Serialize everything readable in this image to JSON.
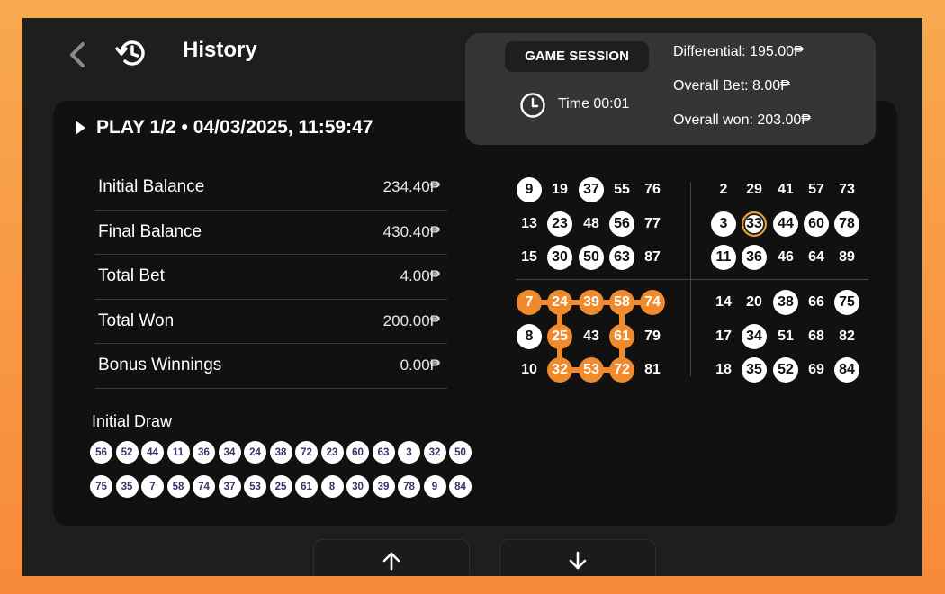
{
  "header": {
    "title": "History"
  },
  "session": {
    "label": "GAME SESSION",
    "time": "Time 00:01",
    "differential": "Differential: 195.00₱",
    "overall_bet": "Overall Bet: 8.00₱",
    "overall_won": "Overall won: 203.00₱"
  },
  "play": {
    "title": "PLAY 1/2 • 04/03/2025, 11:59:47",
    "summary": [
      {
        "label": "Initial Balance",
        "value": "234.40₱"
      },
      {
        "label": "Final Balance",
        "value": "430.40₱"
      },
      {
        "label": "Total Bet",
        "value": "4.00₱"
      },
      {
        "label": "Total Won",
        "value": "200.00₱"
      },
      {
        "label": "Bonus Winnings",
        "value": "0.00₱"
      }
    ],
    "initial_draw_label": "Initial Draw",
    "initial_draw": [
      [
        "56",
        "52",
        "44",
        "11",
        "36",
        "34",
        "24",
        "38",
        "72",
        "23",
        "60",
        "63",
        "3",
        "32",
        "50"
      ],
      [
        "75",
        "35",
        "7",
        "58",
        "74",
        "37",
        "53",
        "25",
        "61",
        "8",
        "30",
        "39",
        "78",
        "9",
        "84"
      ]
    ]
  },
  "cards": [
    {
      "rows": [
        [
          "9",
          "19",
          "37",
          "55",
          "76"
        ],
        [
          "13",
          "23",
          "48",
          "56",
          "77"
        ],
        [
          "15",
          "30",
          "50",
          "63",
          "87"
        ]
      ],
      "marked": [
        "9",
        "37",
        "23",
        "56",
        "30",
        "50",
        "63"
      ],
      "pattern": [],
      "ring": []
    },
    {
      "rows": [
        [
          "2",
          "29",
          "41",
          "57",
          "73"
        ],
        [
          "3",
          "33",
          "44",
          "60",
          "78"
        ],
        [
          "11",
          "36",
          "46",
          "64",
          "89"
        ]
      ],
      "marked": [
        "3",
        "44",
        "60",
        "78",
        "11",
        "36"
      ],
      "pattern": [],
      "ring": [
        "33"
      ]
    },
    {
      "rows": [
        [
          "7",
          "24",
          "39",
          "58",
          "74"
        ],
        [
          "8",
          "25",
          "43",
          "61",
          "79"
        ],
        [
          "10",
          "32",
          "53",
          "72",
          "81"
        ]
      ],
      "marked": [
        "8"
      ],
      "pattern": [
        "7",
        "24",
        "39",
        "58",
        "74",
        "25",
        "61",
        "32",
        "53",
        "72"
      ],
      "ring": []
    },
    {
      "rows": [
        [
          "14",
          "20",
          "38",
          "66",
          "75"
        ],
        [
          "17",
          "34",
          "51",
          "68",
          "82"
        ],
        [
          "18",
          "35",
          "52",
          "69",
          "84"
        ]
      ],
      "marked": [
        "38",
        "75",
        "34",
        "35",
        "52",
        "84"
      ],
      "pattern": [],
      "ring": []
    }
  ],
  "nav": {
    "up_icon": "arrow-up-icon",
    "down_icon": "arrow-down-icon"
  }
}
